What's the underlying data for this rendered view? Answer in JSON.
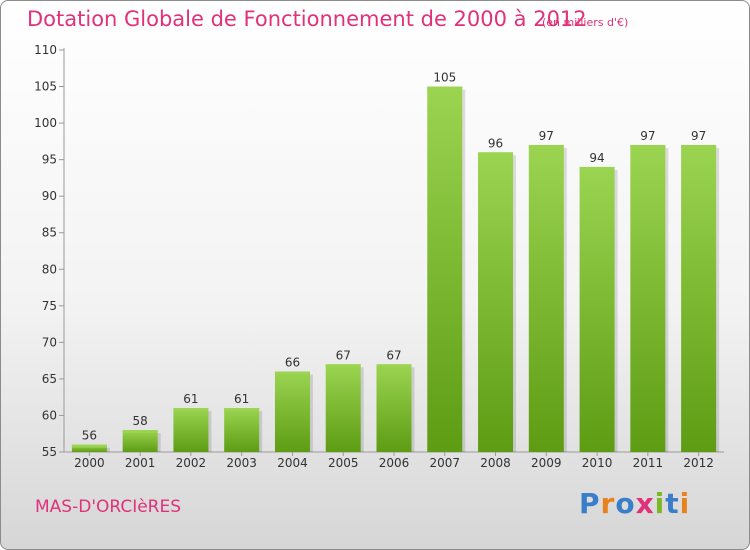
{
  "header": {
    "title": "Dotation Globale de Fonctionnement de 2000 à 2012",
    "unit_note": "(en milliers d'€)"
  },
  "footer": {
    "commune": "MAS-D'ORCIèRES",
    "brand": "Proxiti"
  },
  "colors": {
    "title": "#e0317a",
    "bar_top": "#9bd451",
    "bar_bottom": "#5e9c14"
  },
  "chart_data": {
    "type": "bar",
    "title": "Dotation Globale de Fonctionnement de 2000 à 2012",
    "subtitle": "(en milliers d'€)",
    "categories": [
      "2000",
      "2001",
      "2002",
      "2003",
      "2004",
      "2005",
      "2006",
      "2007",
      "2008",
      "2009",
      "2010",
      "2011",
      "2012"
    ],
    "values": [
      56,
      58,
      61,
      61,
      66,
      67,
      67,
      105,
      96,
      97,
      94,
      97,
      97
    ],
    "ylim": [
      55,
      110
    ],
    "yticks": [
      55,
      60,
      65,
      70,
      75,
      80,
      85,
      90,
      95,
      100,
      105,
      110
    ],
    "xlabel": "",
    "ylabel": "",
    "grid": false,
    "legend": "none"
  }
}
